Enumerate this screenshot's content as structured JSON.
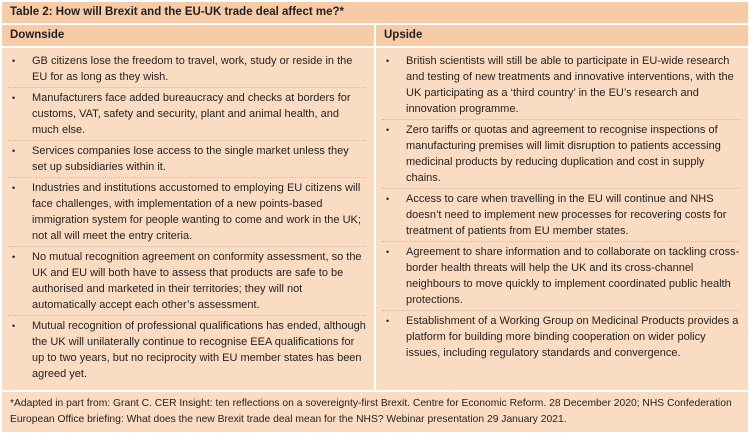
{
  "title": "Table 2: How will Brexit and the EU-UK trade deal affect me?*",
  "columns": {
    "downside": "Downside",
    "upside": "Upside"
  },
  "downside": [
    "GB citizens lose the freedom to travel, work, study or reside in the EU for as long as they wish.",
    "Manufacturers face added bureaucracy and checks at borders for customs, VAT, safety and security, plant and animal health, and much else.",
    "Services companies lose access to the single market unless they set up subsidiaries within it.",
    "Industries and institutions accustomed to employing EU citizens will face challenges, with implementation of a new points-based immigration system for people wanting to come and work in the UK; not all will meet the entry criteria.",
    "No mutual recognition agreement on conformity assessment, so the UK and EU will both have to assess that products are safe to be authorised and marketed in their territories; they will not automatically accept each other’s assessment.",
    "Mutual recognition of professional qualifications has ended, although the UK will unilaterally continue to recognise EEA qualifications for up to two years, but no reciprocity with EU member states has been agreed yet."
  ],
  "upside": [
    "British scientists will still be able to participate in EU-wide research and testing of new treatments and innovative interventions, with the UK participating as a ‘third country’ in the EU’s research and innovation programme.",
    "Zero tariffs or quotas and agreement to recognise inspections of manufacturing premises will limit disruption to patients accessing medicinal products by reducing duplication and cost in supply chains.",
    "Access to care when travelling in the EU will continue and NHS doesn’t need to implement new processes for recovering costs for treatment of patients from EU member states.",
    "Agreement to share information and to collaborate on tackling cross-border health threats will help the UK and its cross-channel neighbours to move quickly to implement coordinated public health protections.",
    "Establishment of a Working Group on Medicinal Products provides a platform for building more binding cooperation on wider policy issues, including regulatory standards and convergence."
  ],
  "footnote": "*Adapted in part from: Grant C. CER Insight: ten reflections on a sovereignty-first Brexit. Centre for Economic Reform. 28 December 2020; NHS Confederation European Office briefing: What does the new Brexit trade deal mean for the NHS? Webinar presentation 29 January 2021."
}
